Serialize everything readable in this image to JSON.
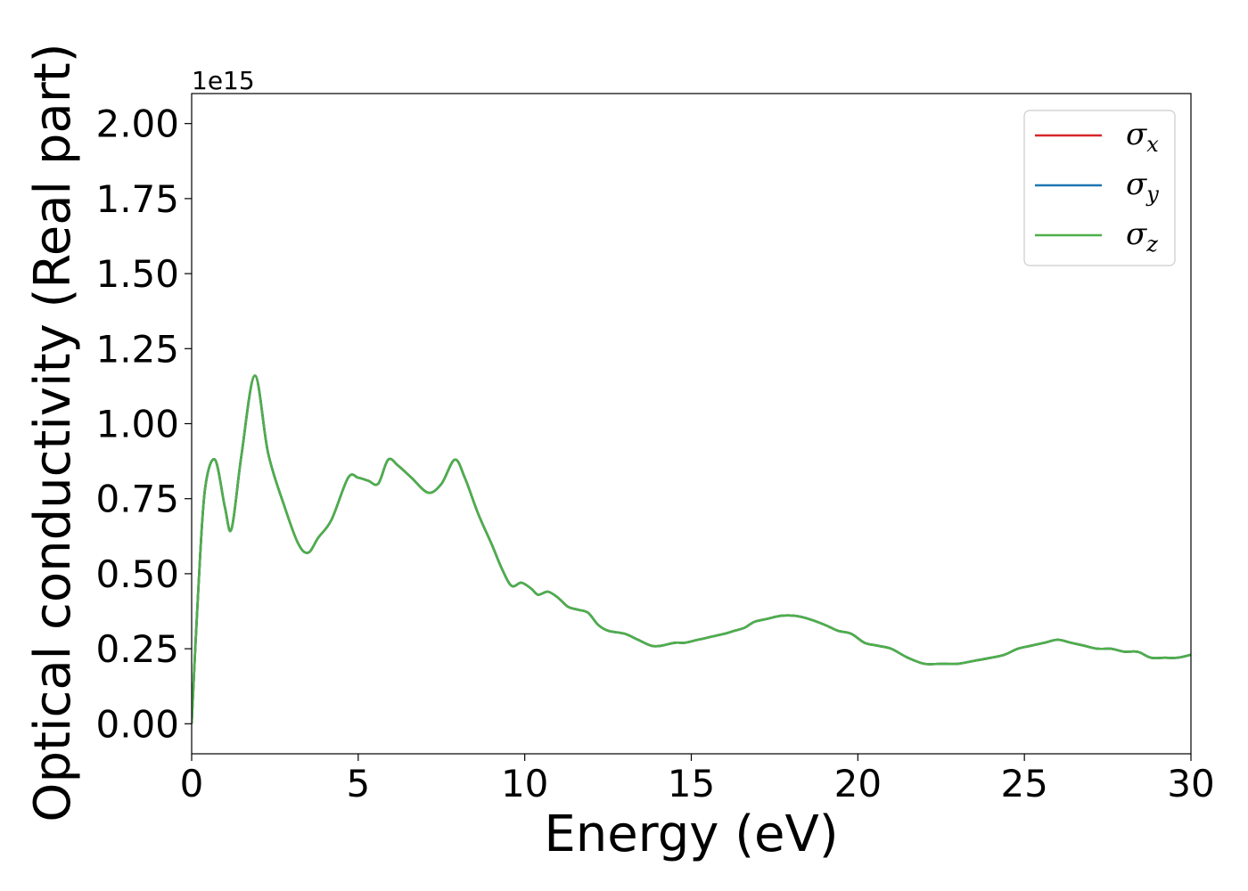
{
  "chart_data": {
    "type": "line",
    "xlabel": "Energy (eV)",
    "ylabel": "Optical conductivity (Real part)",
    "y_offset_label": "1e15",
    "xlim": [
      0,
      30
    ],
    "ylim": [
      -0.1,
      2.1
    ],
    "x_ticks": [
      "0",
      "5",
      "10",
      "15",
      "20",
      "25",
      "30"
    ],
    "y_ticks": [
      "0.00",
      "0.25",
      "0.50",
      "0.75",
      "1.00",
      "1.25",
      "1.50",
      "1.75",
      "2.00"
    ],
    "grid": false,
    "legend_position": "top-right",
    "x": [
      0,
      0.2,
      0.4,
      0.7,
      1.0,
      1.2,
      1.5,
      1.9,
      2.3,
      2.8,
      3.2,
      3.5,
      3.8,
      4.2,
      4.7,
      5.0,
      5.3,
      5.6,
      5.9,
      6.2,
      6.6,
      7.1,
      7.5,
      7.9,
      8.2,
      8.6,
      9.0,
      9.3,
      9.6,
      9.9,
      10.2,
      10.4,
      10.7,
      11.0,
      11.3,
      11.6,
      11.9,
      12.2,
      12.5,
      13.0,
      13.4,
      13.8,
      14.1,
      14.5,
      14.8,
      15.2,
      15.6,
      16.0,
      16.3,
      16.6,
      16.9,
      17.3,
      17.7,
      18.1,
      18.5,
      19.0,
      19.4,
      19.8,
      20.2,
      20.6,
      21.0,
      21.5,
      22.0,
      22.5,
      23.0,
      23.5,
      24.0,
      24.4,
      24.8,
      25.2,
      25.6,
      26.0,
      26.4,
      26.8,
      27.2,
      27.6,
      28.0,
      28.4,
      28.8,
      29.2,
      29.6,
      30.0
    ],
    "series": [
      {
        "name": "x",
        "color": "#d62728",
        "values": [
          0.0,
          0.45,
          0.78,
          0.88,
          0.72,
          0.65,
          0.9,
          1.16,
          0.9,
          0.72,
          0.6,
          0.57,
          0.62,
          0.68,
          0.82,
          0.82,
          0.81,
          0.8,
          0.88,
          0.86,
          0.82,
          0.77,
          0.8,
          0.88,
          0.82,
          0.7,
          0.6,
          0.52,
          0.46,
          0.47,
          0.45,
          0.43,
          0.44,
          0.42,
          0.39,
          0.38,
          0.37,
          0.33,
          0.31,
          0.3,
          0.28,
          0.26,
          0.26,
          0.27,
          0.27,
          0.28,
          0.29,
          0.3,
          0.31,
          0.32,
          0.34,
          0.35,
          0.36,
          0.36,
          0.35,
          0.33,
          0.31,
          0.3,
          0.27,
          0.26,
          0.25,
          0.22,
          0.2,
          0.2,
          0.2,
          0.21,
          0.22,
          0.23,
          0.25,
          0.26,
          0.27,
          0.28,
          0.27,
          0.26,
          0.25,
          0.25,
          0.24,
          0.24,
          0.22,
          0.22,
          0.22,
          0.23
        ]
      },
      {
        "name": "y",
        "color": "#1f77b4",
        "values": [
          0.0,
          0.45,
          0.78,
          0.88,
          0.72,
          0.65,
          0.9,
          1.16,
          0.9,
          0.72,
          0.6,
          0.57,
          0.62,
          0.68,
          0.82,
          0.82,
          0.81,
          0.8,
          0.88,
          0.86,
          0.82,
          0.77,
          0.8,
          0.88,
          0.82,
          0.7,
          0.6,
          0.52,
          0.46,
          0.47,
          0.45,
          0.43,
          0.44,
          0.42,
          0.39,
          0.38,
          0.37,
          0.33,
          0.31,
          0.3,
          0.28,
          0.26,
          0.26,
          0.27,
          0.27,
          0.28,
          0.29,
          0.3,
          0.31,
          0.32,
          0.34,
          0.35,
          0.36,
          0.36,
          0.35,
          0.33,
          0.31,
          0.3,
          0.27,
          0.26,
          0.25,
          0.22,
          0.2,
          0.2,
          0.2,
          0.21,
          0.22,
          0.23,
          0.25,
          0.26,
          0.27,
          0.28,
          0.27,
          0.26,
          0.25,
          0.25,
          0.24,
          0.24,
          0.22,
          0.22,
          0.22,
          0.23
        ]
      },
      {
        "name": "z",
        "color": "#4daf4a",
        "values": [
          0.0,
          0.45,
          0.78,
          0.88,
          0.72,
          0.65,
          0.9,
          1.16,
          0.9,
          0.72,
          0.6,
          0.57,
          0.62,
          0.68,
          0.82,
          0.82,
          0.81,
          0.8,
          0.88,
          0.86,
          0.82,
          0.77,
          0.8,
          0.88,
          0.82,
          0.7,
          0.6,
          0.52,
          0.46,
          0.47,
          0.45,
          0.43,
          0.44,
          0.42,
          0.39,
          0.38,
          0.37,
          0.33,
          0.31,
          0.3,
          0.28,
          0.26,
          0.26,
          0.27,
          0.27,
          0.28,
          0.29,
          0.3,
          0.31,
          0.32,
          0.34,
          0.35,
          0.36,
          0.36,
          0.35,
          0.33,
          0.31,
          0.3,
          0.27,
          0.26,
          0.25,
          0.22,
          0.2,
          0.2,
          0.2,
          0.21,
          0.22,
          0.23,
          0.25,
          0.26,
          0.27,
          0.28,
          0.27,
          0.26,
          0.25,
          0.25,
          0.24,
          0.24,
          0.22,
          0.22,
          0.22,
          0.23
        ]
      }
    ]
  }
}
